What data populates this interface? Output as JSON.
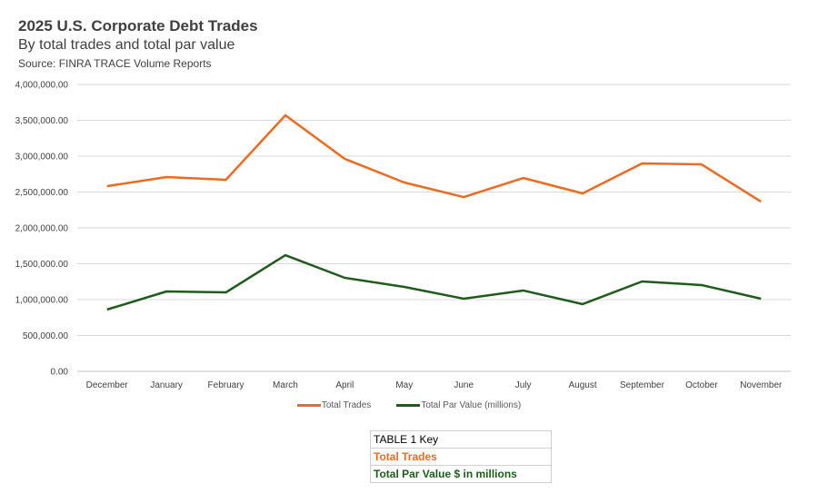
{
  "chart_data": {
    "type": "line",
    "title": "2025 U.S. Corporate Debt Trades",
    "subtitle": "By total trades and total par value",
    "source": "Source: FINRA TRACE Volume Reports",
    "categories": [
      "December",
      "January",
      "February",
      "March",
      "April",
      "May",
      "June",
      "July",
      "August",
      "September",
      "October",
      "November"
    ],
    "series": [
      {
        "name": "Total Trades",
        "color": "#ED6A1F",
        "values": [
          2582000,
          2709000,
          2671000,
          3570000,
          2962000,
          2633000,
          2430000,
          2696000,
          2481000,
          2899000,
          2886000,
          2367000
        ]
      },
      {
        "name": "Total Par Value (millions)",
        "color": "#1E5C1A",
        "values": [
          861000,
          1114000,
          1101000,
          1620000,
          1304000,
          1177000,
          1013000,
          1127000,
          937000,
          1253000,
          1203000,
          1013000
        ]
      }
    ],
    "ylim": [
      0,
      4000000
    ],
    "yticks": [
      "0.00",
      "500,000.00",
      "1,000,000.00",
      "1,500,000.00",
      "2,000,000.00",
      "2,500,000.00",
      "3,000,000.00",
      "3,500,000.00",
      "4,000,000.00"
    ],
    "grid": true,
    "legend": "bottom"
  },
  "key_table": {
    "title": "TABLE 1 Key",
    "rows": [
      {
        "label": "Total Trades",
        "color": "#ED6A1F"
      },
      {
        "label": "Total Par Value $ in millions",
        "color": "#1E5C1A"
      }
    ]
  }
}
